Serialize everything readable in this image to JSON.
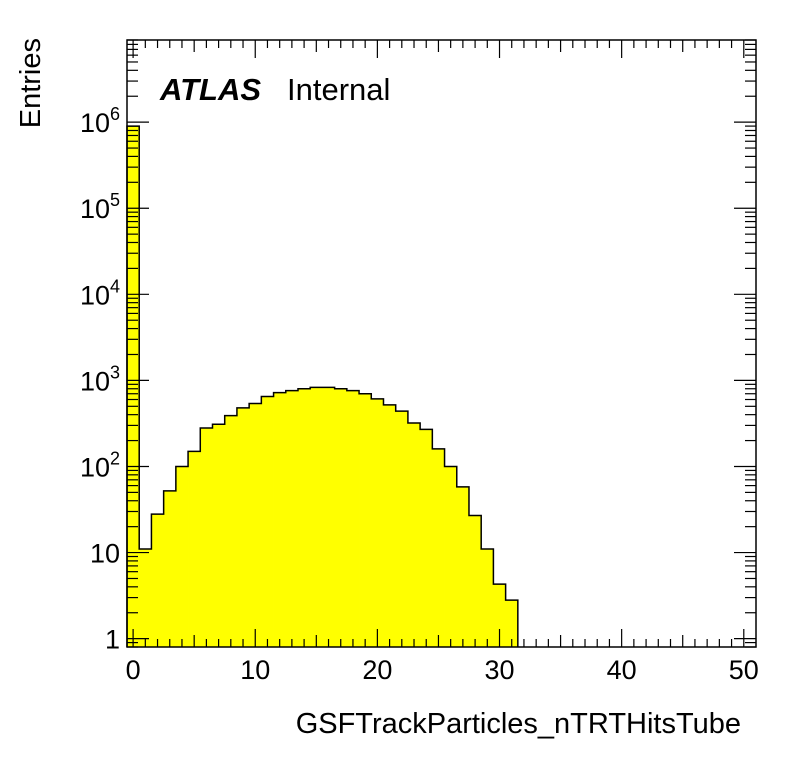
{
  "chart_data": {
    "type": "bar",
    "histogram": true,
    "x_label": "GSFTrackParticles_nTRTHitsTube",
    "y_label": "Entries",
    "atlas_label": "ATLAS",
    "atlas_sublabel": "Internal",
    "y_log_scale": true,
    "x_range": [
      -0.5,
      51
    ],
    "y_range": [
      0.8,
      9000000
    ],
    "x_ticks": [
      {
        "value": 0,
        "label": "0"
      },
      {
        "value": 10,
        "label": "10"
      },
      {
        "value": 20,
        "label": "20"
      },
      {
        "value": 30,
        "label": "30"
      },
      {
        "value": 40,
        "label": "40"
      },
      {
        "value": 50,
        "label": "50"
      }
    ],
    "y_ticks": [
      {
        "value": 1,
        "base": "1",
        "exp": ""
      },
      {
        "value": 10,
        "base": "10",
        "exp": ""
      },
      {
        "value": 100,
        "base": "10",
        "exp": "2"
      },
      {
        "value": 1000,
        "base": "10",
        "exp": "3"
      },
      {
        "value": 10000,
        "base": "10",
        "exp": "4"
      },
      {
        "value": 100000,
        "base": "10",
        "exp": "5"
      },
      {
        "value": 1000000,
        "base": "10",
        "exp": "6"
      }
    ],
    "bin_width": 1,
    "bin_low_edges": [
      -0.5,
      0.5,
      1.5,
      2.5,
      3.5,
      4.5,
      5.5,
      6.5,
      7.5,
      8.5,
      9.5,
      10.5,
      11.5,
      12.5,
      13.5,
      14.5,
      15.5,
      16.5,
      17.5,
      18.5,
      19.5,
      20.5,
      21.5,
      22.5,
      23.5,
      24.5,
      25.5,
      26.5,
      27.5,
      28.5,
      29.5,
      30.5
    ],
    "values": [
      900000,
      11,
      28,
      52,
      100,
      150,
      280,
      310,
      390,
      480,
      540,
      650,
      720,
      760,
      800,
      830,
      830,
      800,
      760,
      700,
      610,
      520,
      440,
      320,
      270,
      160,
      100,
      58,
      27,
      11,
      4.3,
      2.8
    ],
    "fill_color": "#ffff00",
    "line_color": "#000000"
  }
}
